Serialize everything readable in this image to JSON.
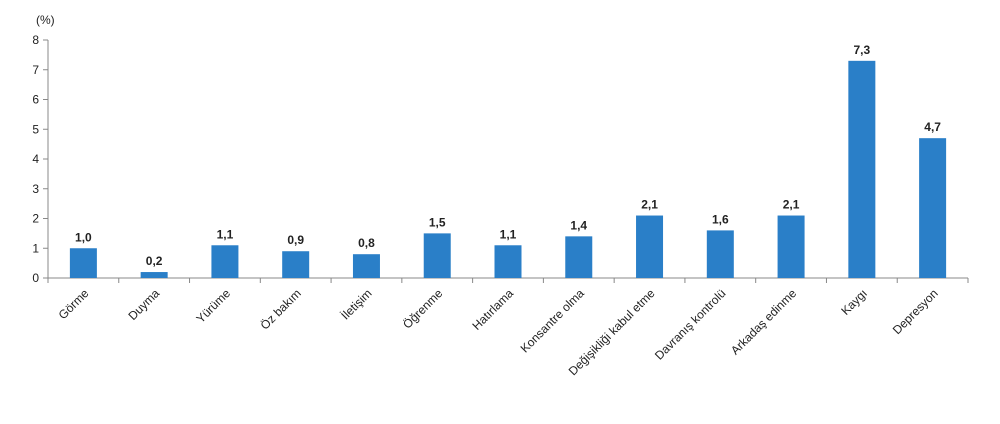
{
  "chart_data": {
    "type": "bar",
    "unit_label": "(%)",
    "categories": [
      "Görme",
      "Duyma",
      "Yürüme",
      "Öz bakım",
      "İletişim",
      "Öğrenme",
      "Hatırlama",
      "Konsantre olma",
      "Değişikliği kabul etme",
      "Davranış kontrolü",
      "Arkadaş edinme",
      "Kaygı",
      "Depresyon"
    ],
    "values": [
      1.0,
      0.2,
      1.1,
      0.9,
      0.8,
      1.5,
      1.1,
      1.4,
      2.1,
      1.6,
      2.1,
      7.3,
      4.7
    ],
    "value_labels": [
      "1,0",
      "0,2",
      "1,1",
      "0,9",
      "0,8",
      "1,5",
      "1,1",
      "1,4",
      "2,1",
      "1,6",
      "2,1",
      "7,3",
      "4,7"
    ],
    "ylim": [
      0,
      8
    ],
    "yticks": [
      0,
      1,
      2,
      3,
      4,
      5,
      6,
      7,
      8
    ],
    "grid": false,
    "legend": "none",
    "bar_color": "#2a7fc8",
    "axis_color": "#888888"
  }
}
